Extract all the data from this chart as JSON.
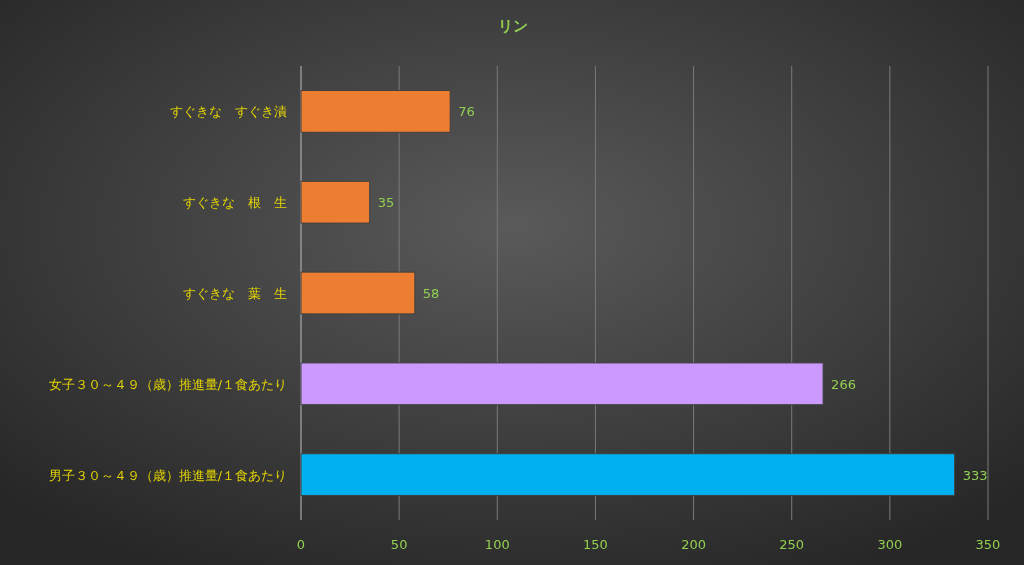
{
  "chart_data": {
    "type": "bar",
    "orientation": "horizontal",
    "title": "リン",
    "categories": [
      "すぐきな　すぐき漬",
      "すぐきな　根　生",
      "すぐきな　葉　生",
      "女子３０～４９（歳）推進量/１食あたり",
      "男子３０～４９（歳）推進量/１食あたり"
    ],
    "values": [
      76,
      35,
      58,
      266,
      333
    ],
    "colors": [
      "#ed7d31",
      "#ed7d31",
      "#ed7d31",
      "#cc99ff",
      "#00b0f0"
    ],
    "xlim": [
      0,
      350
    ],
    "xticks": [
      0,
      50,
      100,
      150,
      200,
      250,
      300,
      350
    ],
    "grid": "x",
    "data_labels": true
  }
}
